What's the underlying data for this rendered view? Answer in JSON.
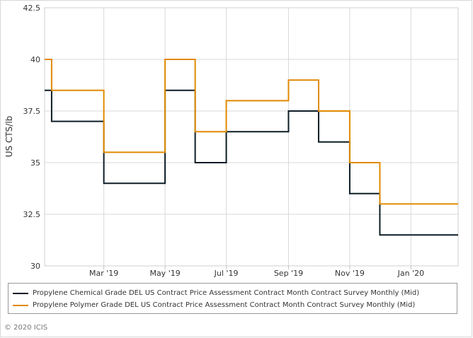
{
  "chart_data": {
    "type": "line",
    "step": true,
    "ylabel": "US CTS/lb",
    "ylim": [
      30,
      42.5
    ],
    "yticks": [
      30,
      32.5,
      35,
      37.5,
      40,
      42.5
    ],
    "ytick_labels": [
      "30",
      "32.5",
      "35",
      "37.5",
      "40",
      "42.5"
    ],
    "xlim": [
      "2019-01-01",
      "2020-02-17"
    ],
    "xticks": [
      "2019-03-01",
      "2019-05-01",
      "2019-07-01",
      "2019-09-01",
      "2019-11-01",
      "2020-01-01"
    ],
    "xtick_labels": [
      "Mar '19",
      "May '19",
      "Jul '19",
      "Sep '19",
      "Nov '19",
      "Jan '20"
    ],
    "grid": true,
    "legend_position": "bottom",
    "series": [
      {
        "name": "Propylene Chemical Grade DEL US Contract Price Assessment Contract Month Contract Survey Monthly (Mid)",
        "color": "#0d1d26",
        "points": [
          {
            "x": "2019-01-01",
            "y": 38.5
          },
          {
            "x": "2019-01-08",
            "y": 37
          },
          {
            "x": "2019-03-01",
            "y": 34
          },
          {
            "x": "2019-05-01",
            "y": 38.5
          },
          {
            "x": "2019-05-31",
            "y": 35
          },
          {
            "x": "2019-07-01",
            "y": 36.5
          },
          {
            "x": "2019-09-01",
            "y": 37.5
          },
          {
            "x": "2019-10-01",
            "y": 36
          },
          {
            "x": "2019-11-01",
            "y": 33.5
          },
          {
            "x": "2019-12-01",
            "y": 31.5
          },
          {
            "x": "2020-02-17",
            "y": 31.5
          }
        ]
      },
      {
        "name": "Propylene Polymer Grade DEL US Contract Price Assessment Contract Month Contract Survey Monthly (Mid)",
        "color": "#e08a00",
        "points": [
          {
            "x": "2019-01-01",
            "y": 40
          },
          {
            "x": "2019-01-08",
            "y": 38.5
          },
          {
            "x": "2019-03-01",
            "y": 35.5
          },
          {
            "x": "2019-05-01",
            "y": 40
          },
          {
            "x": "2019-05-31",
            "y": 36.5
          },
          {
            "x": "2019-07-01",
            "y": 38
          },
          {
            "x": "2019-09-01",
            "y": 39
          },
          {
            "x": "2019-10-01",
            "y": 37.5
          },
          {
            "x": "2019-11-01",
            "y": 35
          },
          {
            "x": "2019-12-01",
            "y": 33
          },
          {
            "x": "2020-02-17",
            "y": 33
          }
        ]
      }
    ]
  },
  "footer": {
    "copyright": "© 2020 ICIS"
  }
}
